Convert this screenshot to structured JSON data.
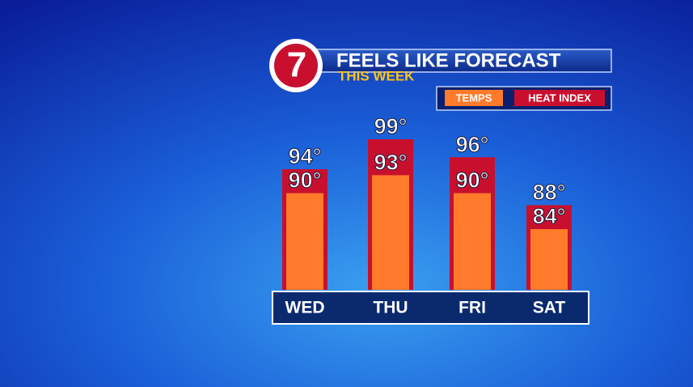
{
  "chart_data": {
    "type": "bar",
    "logo": "7",
    "title": "FEELS LIKE FORECAST",
    "subtitle": "THIS WEEK",
    "categories": [
      "WED",
      "THU",
      "FRI",
      "SAT"
    ],
    "series": [
      {
        "name": "TEMPS",
        "color": "#ff7a2a",
        "values": [
          90,
          93,
          90,
          84
        ],
        "value_labels": [
          "90°",
          "93°",
          "90°",
          "84°"
        ]
      },
      {
        "name": "HEAT INDEX",
        "color": "#c8102e",
        "values": [
          94,
          99,
          96,
          88
        ],
        "value_labels": [
          "94°",
          "99°",
          "96°",
          "88°"
        ]
      }
    ]
  }
}
